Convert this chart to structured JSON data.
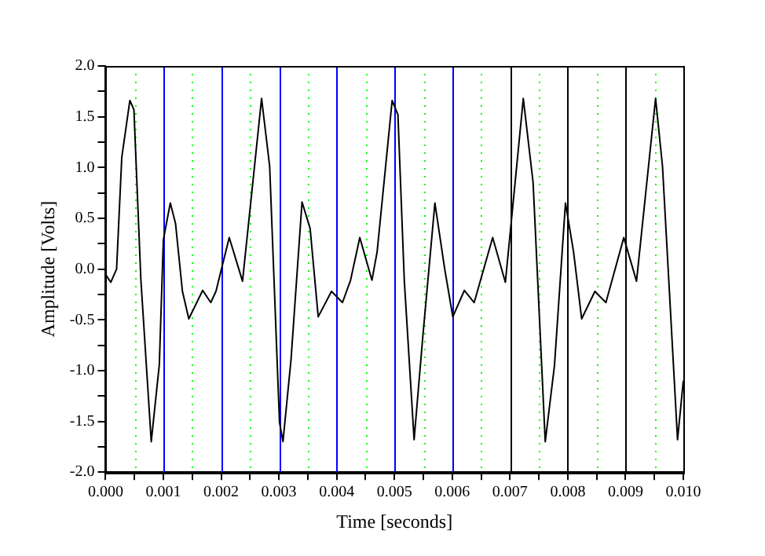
{
  "chart_data": {
    "type": "line",
    "xlabel": "Time [seconds]",
    "ylabel": "Amplitude [Volts]",
    "series": [
      {
        "color": "#000000",
        "x": [
          0,
          3e-05,
          9e-05,
          0.00019,
          0.00028,
          0.00042,
          0.00049,
          0.00061,
          0.00079,
          0.00093,
          0.001,
          0.00112,
          0.00121,
          0.00133,
          0.00144,
          0.00168,
          0.00182,
          0.00191,
          0.00214,
          0.00237,
          0.0027,
          0.00284,
          0.00301,
          0.00307,
          0.00321,
          0.0034,
          0.00354,
          0.00368,
          0.00391,
          0.0041,
          0.00424,
          0.0044,
          0.00461,
          0.0047,
          0.00496,
          0.00506,
          0.00517,
          0.00534,
          0.00549,
          0.0057,
          0.00587,
          0.00601,
          0.00621,
          0.00638,
          0.0067,
          0.00692,
          0.00723,
          0.0074,
          0.00761,
          0.00777,
          0.00796,
          0.0081,
          0.00824,
          0.00847,
          0.00866,
          0.00897,
          0.00919,
          0.00952,
          0.00964,
          0.0099,
          0.01
        ],
        "values": [
          -0.05,
          -0.08,
          -0.13,
          0,
          1.1,
          1.66,
          1.57,
          -0.1,
          -1.7,
          -0.94,
          0.29,
          0.65,
          0.45,
          -0.22,
          -0.49,
          -0.21,
          -0.33,
          -0.22,
          0.31,
          -0.12,
          1.68,
          1.01,
          -1.51,
          -1.7,
          -0.89,
          0.66,
          0.4,
          -0.47,
          -0.22,
          -0.33,
          -0.11,
          0.31,
          -0.11,
          0.17,
          1.66,
          1.52,
          -0.11,
          -1.68,
          -0.67,
          0.65,
          0,
          -0.47,
          -0.21,
          -0.33,
          0.31,
          -0.13,
          1.68,
          0.85,
          -1.7,
          -0.95,
          0.65,
          0.17,
          -0.49,
          -0.22,
          -0.33,
          0.31,
          -0.12,
          1.68,
          1.01,
          -1.68,
          -1.1
        ]
      }
    ],
    "xlim": [
      0,
      0.01
    ],
    "xticks": [
      {
        "value": 0,
        "label": "0.000"
      },
      {
        "value": 0.0005,
        "label": null
      },
      {
        "value": 0.001,
        "label": "0.001"
      },
      {
        "value": 0.0015,
        "label": null
      },
      {
        "value": 0.002,
        "label": "0.002"
      },
      {
        "value": 0.0025,
        "label": null
      },
      {
        "value": 0.003,
        "label": "0.003"
      },
      {
        "value": 0.0035,
        "label": null
      },
      {
        "value": 0.004,
        "label": "0.004"
      },
      {
        "value": 0.0045,
        "label": null
      },
      {
        "value": 0.005,
        "label": "0.005"
      },
      {
        "value": 0.0055,
        "label": null
      },
      {
        "value": 0.006,
        "label": "0.006"
      },
      {
        "value": 0.0065,
        "label": null
      },
      {
        "value": 0.007,
        "label": "0.007"
      },
      {
        "value": 0.0075,
        "label": null
      },
      {
        "value": 0.008,
        "label": "0.008"
      },
      {
        "value": 0.0085,
        "label": null
      },
      {
        "value": 0.009,
        "label": "0.009"
      },
      {
        "value": 0.0095,
        "label": null
      },
      {
        "value": 0.01,
        "label": "0.010"
      }
    ],
    "ylim": [
      -2,
      2
    ],
    "yticks": [
      {
        "value": -2,
        "label": "-2.0"
      },
      {
        "value": -1.75,
        "label": null
      },
      {
        "value": -1.5,
        "label": "-1.5"
      },
      {
        "value": -1.25,
        "label": null
      },
      {
        "value": -1,
        "label": "-1.0"
      },
      {
        "value": -0.75,
        "label": null
      },
      {
        "value": -0.5,
        "label": "-0.5"
      },
      {
        "value": -0.25,
        "label": null
      },
      {
        "value": 0,
        "label": "0.0"
      },
      {
        "value": 0.25,
        "label": null
      },
      {
        "value": 0.5,
        "label": "0.5"
      },
      {
        "value": 0.75,
        "label": null
      },
      {
        "value": 1,
        "label": "1.0"
      },
      {
        "value": 1.25,
        "label": null
      },
      {
        "value": 1.5,
        "label": "1.5"
      },
      {
        "value": 1.75,
        "label": null
      },
      {
        "value": 2,
        "label": "2.0"
      }
    ],
    "ref_lines": [
      {
        "axis": "x",
        "value": 0.0005,
        "color": "#00ff00",
        "line_style": "dotted"
      },
      {
        "axis": "x",
        "value": 0.0015,
        "color": "#00ff00",
        "line_style": "dotted"
      },
      {
        "axis": "x",
        "value": 0.0025,
        "color": "#00ff00",
        "line_style": "dotted"
      },
      {
        "axis": "x",
        "value": 0.0035,
        "color": "#00ff00",
        "line_style": "dotted"
      },
      {
        "axis": "x",
        "value": 0.0045,
        "color": "#00ff00",
        "line_style": "dotted"
      },
      {
        "axis": "x",
        "value": 0.0055,
        "color": "#00ff00",
        "line_style": "dotted"
      },
      {
        "axis": "x",
        "value": 0.0065,
        "color": "#00ff00",
        "line_style": "dotted"
      },
      {
        "axis": "x",
        "value": 0.0075,
        "color": "#00ff00",
        "line_style": "dotted"
      },
      {
        "axis": "x",
        "value": 0.0085,
        "color": "#00ff00",
        "line_style": "dotted"
      },
      {
        "axis": "x",
        "value": 0.0095,
        "color": "#00ff00",
        "line_style": "dotted"
      },
      {
        "axis": "x",
        "value": 0.001,
        "color": "#0000ff",
        "line_style": "solid"
      },
      {
        "axis": "x",
        "value": 0.002,
        "color": "#0000ff",
        "line_style": "solid"
      },
      {
        "axis": "x",
        "value": 0.003,
        "color": "#0000ff",
        "line_style": "solid"
      },
      {
        "axis": "x",
        "value": 0.004,
        "color": "#0000ff",
        "line_style": "solid"
      },
      {
        "axis": "x",
        "value": 0.005,
        "color": "#0000ff",
        "line_style": "solid"
      },
      {
        "axis": "x",
        "value": 0.006,
        "color": "#0000ff",
        "line_style": "solid"
      },
      {
        "axis": "x",
        "value": 0.007,
        "color": "#000000",
        "line_style": "solid"
      },
      {
        "axis": "x",
        "value": 0.008,
        "color": "#000000",
        "line_style": "solid"
      },
      {
        "axis": "x",
        "value": 0.009,
        "color": "#000000",
        "line_style": "solid"
      }
    ],
    "grid": false,
    "legend": false,
    "marker": "none",
    "line_style": "solid"
  }
}
